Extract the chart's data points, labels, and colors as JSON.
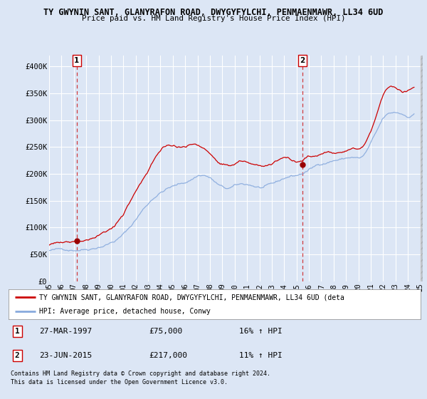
{
  "title1": "TY GWYNIN SANT, GLANYRAFON ROAD, DWYGYFYLCHI, PENMAENMAWR, LL34 6UD",
  "title2": "Price paid vs. HM Land Registry's House Price Index (HPI)",
  "ylim": [
    0,
    420000
  ],
  "yticks": [
    0,
    50000,
    100000,
    150000,
    200000,
    250000,
    300000,
    350000,
    400000
  ],
  "ytick_labels": [
    "£0",
    "£50K",
    "£100K",
    "£150K",
    "£200K",
    "£250K",
    "£300K",
    "£350K",
    "£400K"
  ],
  "background_color": "#dce6f5",
  "plot_bg": "#dce6f5",
  "grid_color": "#ffffff",
  "red_line_color": "#cc0000",
  "blue_line_color": "#88aadd",
  "marker_color": "#990000",
  "annotation_box_color": "#cc0000",
  "legend_red_label": "TY GWYNIN SANT, GLANYRAFON ROAD, DWYGYFYLCHI, PENMAENMAWR, LL34 6UD (deta",
  "legend_blue_label": "HPI: Average price, detached house, Conwy",
  "sale1_label": "1",
  "sale1_date": "27-MAR-1997",
  "sale1_price": "£75,000",
  "sale1_hpi": "16% ↑ HPI",
  "sale1_year": 1997.23,
  "sale1_value": 75000,
  "sale2_label": "2",
  "sale2_date": "23-JUN-2015",
  "sale2_price": "£217,000",
  "sale2_hpi": "11% ↑ HPI",
  "sale2_year": 2015.47,
  "sale2_value": 217000,
  "footnote1": "Contains HM Land Registry data © Crown copyright and database right 2024.",
  "footnote2": "This data is licensed under the Open Government Licence v3.0.",
  "xmin": 1995.0,
  "xmax": 2025.2
}
